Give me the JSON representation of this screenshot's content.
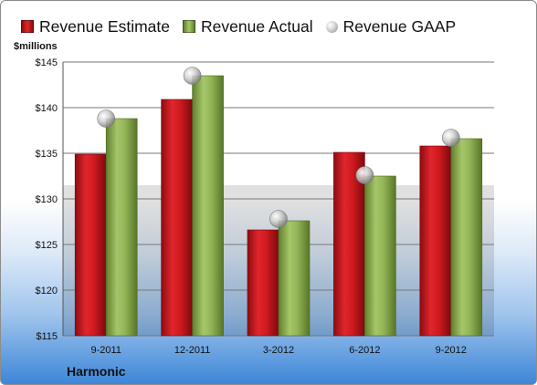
{
  "legend": {
    "estimate": "Revenue Estimate",
    "actual": "Revenue Actual",
    "gaap": "Revenue GAAP"
  },
  "units_label": "$millions",
  "company": "Harmonic",
  "colors": {
    "estimate": "#c8161d",
    "actual": "#8bae4e",
    "gaap": "#b5b5b5",
    "grid": "#777777"
  },
  "chart_data": {
    "type": "bar",
    "title": "",
    "xlabel": "",
    "ylabel": "$millions",
    "ylim": [
      115,
      145
    ],
    "yticks": [
      "$115",
      "$120",
      "$125",
      "$130",
      "$135",
      "$140",
      "$145"
    ],
    "yticks_values": [
      115,
      120,
      125,
      130,
      135,
      140,
      145
    ],
    "grid": true,
    "legend_position": "top",
    "categories": [
      "9-2011",
      "12-2011",
      "3-2012",
      "6-2012",
      "9-2012"
    ],
    "series": [
      {
        "name": "Revenue Estimate",
        "kind": "bar",
        "values": [
          134.9,
          140.9,
          126.6,
          135.1,
          135.8
        ]
      },
      {
        "name": "Revenue Actual",
        "kind": "bar",
        "values": [
          138.8,
          143.5,
          127.6,
          132.5,
          136.6
        ]
      },
      {
        "name": "Revenue GAAP",
        "kind": "marker",
        "values": [
          138.8,
          143.5,
          127.8,
          132.6,
          136.7
        ]
      }
    ]
  }
}
